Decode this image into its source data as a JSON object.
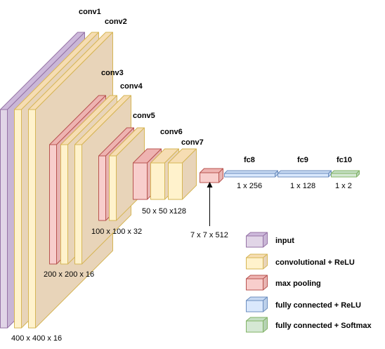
{
  "colors": {
    "input": {
      "front": "#e1d5e7",
      "side": "#c9b6d6",
      "top": "#cdb9db",
      "stroke": "#9673a6"
    },
    "conv": {
      "front": "#fff2cc",
      "side": "#e8d4b9",
      "top": "#f6ddb3",
      "stroke": "#d6b656"
    },
    "pool": {
      "front": "#f8cecc",
      "side": "#e8b4b2",
      "top": "#eeb3b1",
      "stroke": "#b85450"
    },
    "fc_relu": {
      "front": "#dae8fc",
      "side": "#bcd0ea",
      "top": "#c7d9f2",
      "stroke": "#6c8ebf"
    },
    "fc_softmax": {
      "front": "#d5e8d4",
      "side": "#b6d2b4",
      "top": "#c4dfc3",
      "stroke": "#82b366"
    }
  },
  "layers": {
    "conv1": "conv1",
    "conv2": "conv2",
    "conv3": "conv3",
    "conv4": "conv4",
    "conv5": "conv5",
    "conv6": "conv6",
    "conv7": "conv7",
    "fc8": "fc8",
    "fc9": "fc9",
    "fc10": "fc10"
  },
  "dims": {
    "d400": "400 x 400 x 16",
    "d200": "200 x 200 x 16",
    "d100": "100 x 100 x 32",
    "d50": "50 x 50 x128",
    "d7": "7 x 7 x 512",
    "fc8": "1 x 256",
    "fc9": "1 x 128",
    "fc10": "1 x 2"
  },
  "legend": [
    {
      "key": "input",
      "label": "input"
    },
    {
      "key": "conv",
      "label": "convolutional + ReLU"
    },
    {
      "key": "pool",
      "label": "max pooling"
    },
    {
      "key": "fc_relu",
      "label": "fully connected + ReLU"
    },
    {
      "key": "fc_softmax",
      "label": "fully connected + Softmax"
    }
  ]
}
